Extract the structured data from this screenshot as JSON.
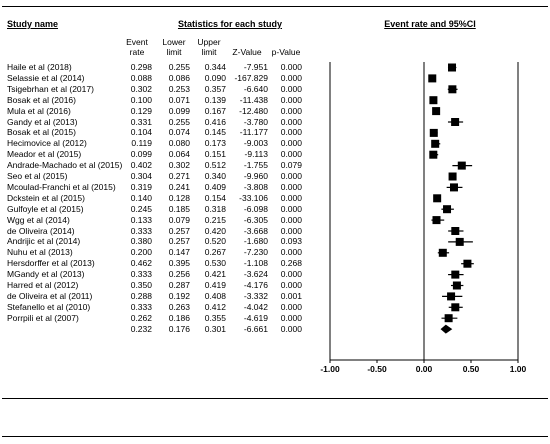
{
  "header": {
    "study_name": "Study name",
    "stats_title": "Statistics for each study",
    "plot_title": "Event rate and 95%CI",
    "col_event_1": "Event",
    "col_event_2": "rate",
    "col_lower_1": "Lower",
    "col_lower_2": "limit",
    "col_upper_1": "Upper",
    "col_upper_2": "limit",
    "col_z": "Z-Value",
    "col_p": "p-Value"
  },
  "rows": [
    {
      "name": "Haile et al (2018)",
      "er": "0.298",
      "ll": "0.255",
      "ul": "0.344",
      "z": "-7.951",
      "p": "0.000"
    },
    {
      "name": "Selassie et al (2014)",
      "er": "0.088",
      "ll": "0.086",
      "ul": "0.090",
      "z": "-167.829",
      "p": "0.000"
    },
    {
      "name": "Tsigebrhan et al (2017)",
      "er": "0.302",
      "ll": "0.253",
      "ul": "0.357",
      "z": "-6.640",
      "p": "0.000"
    },
    {
      "name": "Bosak et al (2016)",
      "er": "0.100",
      "ll": "0.071",
      "ul": "0.139",
      "z": "-11.438",
      "p": "0.000"
    },
    {
      "name": "Mula et al (2016)",
      "er": "0.129",
      "ll": "0.099",
      "ul": "0.167",
      "z": "-12.480",
      "p": "0.000"
    },
    {
      "name": "Gandy et al (2013)",
      "er": "0.331",
      "ll": "0.255",
      "ul": "0.416",
      "z": "-3.780",
      "p": "0.000"
    },
    {
      "name": "Bosak et al (2015)",
      "er": "0.104",
      "ll": "0.074",
      "ul": "0.145",
      "z": "-11.177",
      "p": "0.000"
    },
    {
      "name": "Hecimovice al (2012)",
      "er": "0.119",
      "ll": "0.080",
      "ul": "0.173",
      "z": "-9.003",
      "p": "0.000"
    },
    {
      "name": "Meador et al (2015)",
      "er": "0.099",
      "ll": "0.064",
      "ul": "0.151",
      "z": "-9.113",
      "p": "0.000"
    },
    {
      "name": "Andrade-Machado et al (2015)",
      "er": "0.402",
      "ll": "0.302",
      "ul": "0.512",
      "z": "-1.755",
      "p": "0.079"
    },
    {
      "name": "Seo et al (2015)",
      "er": "0.304",
      "ll": "0.271",
      "ul": "0.340",
      "z": "-9.960",
      "p": "0.000"
    },
    {
      "name": "Mcoulad-Franchi et al (2015)",
      "er": "0.319",
      "ll": "0.241",
      "ul": "0.409",
      "z": "-3.808",
      "p": "0.000"
    },
    {
      "name": "Dckstein et al (2015)",
      "er": "0.140",
      "ll": "0.128",
      "ul": "0.154",
      "z": "-33.106",
      "p": "0.000"
    },
    {
      "name": "Gulfoyle et al (2015)",
      "er": "0.245",
      "ll": "0.185",
      "ul": "0.318",
      "z": "-6.098",
      "p": "0.000"
    },
    {
      "name": "Wgg et al (2014)",
      "er": "0.133",
      "ll": "0.079",
      "ul": "0.215",
      "z": "-6.305",
      "p": "0.000"
    },
    {
      "name": "de Oliveira (2014)",
      "er": "0.333",
      "ll": "0.257",
      "ul": "0.420",
      "z": "-3.668",
      "p": "0.000"
    },
    {
      "name": "Andrijic et al (2014)",
      "er": "0.380",
      "ll": "0.257",
      "ul": "0.520",
      "z": "-1.680",
      "p": "0.093"
    },
    {
      "name": "Nuhu et al (2013)",
      "er": "0.200",
      "ll": "0.147",
      "ul": "0.267",
      "z": "-7.230",
      "p": "0.000"
    },
    {
      "name": "Hersdorffer et al (2013)",
      "er": "0.462",
      "ll": "0.395",
      "ul": "0.530",
      "z": "-1.108",
      "p": "0.268"
    },
    {
      "name": "MGandy et al (2013)",
      "er": "0.333",
      "ll": "0.256",
      "ul": "0.421",
      "z": "-3.624",
      "p": "0.000"
    },
    {
      "name": "Harred et al (2012)",
      "er": "0.350",
      "ll": "0.287",
      "ul": "0.419",
      "z": "-4.176",
      "p": "0.000"
    },
    {
      "name": "de Oliveira et al (2011)",
      "er": "0.288",
      "ll": "0.192",
      "ul": "0.408",
      "z": "-3.332",
      "p": "0.001"
    },
    {
      "name": "Stefanello et al (2010)",
      "er": "0.333",
      "ll": "0.263",
      "ul": "0.412",
      "z": "-4.042",
      "p": "0.000"
    },
    {
      "name": "Porrpili et al (2007)",
      "er": "0.262",
      "ll": "0.186",
      "ul": "0.355",
      "z": "-4.619",
      "p": "0.000"
    }
  ],
  "pooled": {
    "name": "",
    "er": "0.232",
    "ll": "0.176",
    "ul": "0.301",
    "z": "-6.661",
    "p": "0.000"
  },
  "chart_data": {
    "type": "forest",
    "title": "Event rate and 95%CI",
    "xlim": [
      -1.0,
      1.0
    ],
    "x_ticks": [
      "-1.00",
      "-0.50",
      "0.00",
      "0.50",
      "1.00"
    ],
    "x_tick_values": [
      -1.0,
      -0.5,
      0.0,
      0.5,
      1.0
    ],
    "studies": [
      {
        "name": "Haile et al (2018)",
        "rate": 0.298,
        "lower": 0.255,
        "upper": 0.344
      },
      {
        "name": "Selassie et al (2014)",
        "rate": 0.088,
        "lower": 0.086,
        "upper": 0.09
      },
      {
        "name": "Tsigebrhan et al (2017)",
        "rate": 0.302,
        "lower": 0.253,
        "upper": 0.357
      },
      {
        "name": "Bosak et al (2016)",
        "rate": 0.1,
        "lower": 0.071,
        "upper": 0.139
      },
      {
        "name": "Mula et al (2016)",
        "rate": 0.129,
        "lower": 0.099,
        "upper": 0.167
      },
      {
        "name": "Gandy et al (2013)",
        "rate": 0.331,
        "lower": 0.255,
        "upper": 0.416
      },
      {
        "name": "Bosak et al (2015)",
        "rate": 0.104,
        "lower": 0.074,
        "upper": 0.145
      },
      {
        "name": "Hecimovice al (2012)",
        "rate": 0.119,
        "lower": 0.08,
        "upper": 0.173
      },
      {
        "name": "Meador et al (2015)",
        "rate": 0.099,
        "lower": 0.064,
        "upper": 0.151
      },
      {
        "name": "Andrade-Machado et al (2015)",
        "rate": 0.402,
        "lower": 0.302,
        "upper": 0.512
      },
      {
        "name": "Seo et al (2015)",
        "rate": 0.304,
        "lower": 0.271,
        "upper": 0.34
      },
      {
        "name": "Mcoulad-Franchi et al (2015)",
        "rate": 0.319,
        "lower": 0.241,
        "upper": 0.409
      },
      {
        "name": "Dckstein et al (2015)",
        "rate": 0.14,
        "lower": 0.128,
        "upper": 0.154
      },
      {
        "name": "Gulfoyle et al (2015)",
        "rate": 0.245,
        "lower": 0.185,
        "upper": 0.318
      },
      {
        "name": "Wgg et al (2014)",
        "rate": 0.133,
        "lower": 0.079,
        "upper": 0.215
      },
      {
        "name": "de Oliveira (2014)",
        "rate": 0.333,
        "lower": 0.257,
        "upper": 0.42
      },
      {
        "name": "Andrijic et al (2014)",
        "rate": 0.38,
        "lower": 0.257,
        "upper": 0.52
      },
      {
        "name": "Nuhu et al (2013)",
        "rate": 0.2,
        "lower": 0.147,
        "upper": 0.267
      },
      {
        "name": "Hersdorffer et al (2013)",
        "rate": 0.462,
        "lower": 0.395,
        "upper": 0.53
      },
      {
        "name": "MGandy et al (2013)",
        "rate": 0.333,
        "lower": 0.256,
        "upper": 0.421
      },
      {
        "name": "Harred et al (2012)",
        "rate": 0.35,
        "lower": 0.287,
        "upper": 0.419
      },
      {
        "name": "de Oliveira et al (2011)",
        "rate": 0.288,
        "lower": 0.192,
        "upper": 0.408
      },
      {
        "name": "Stefanello et al (2010)",
        "rate": 0.333,
        "lower": 0.263,
        "upper": 0.412
      },
      {
        "name": "Porrpili et al (2007)",
        "rate": 0.262,
        "lower": 0.186,
        "upper": 0.355
      }
    ],
    "pooled": {
      "rate": 0.232,
      "lower": 0.176,
      "upper": 0.301
    }
  }
}
